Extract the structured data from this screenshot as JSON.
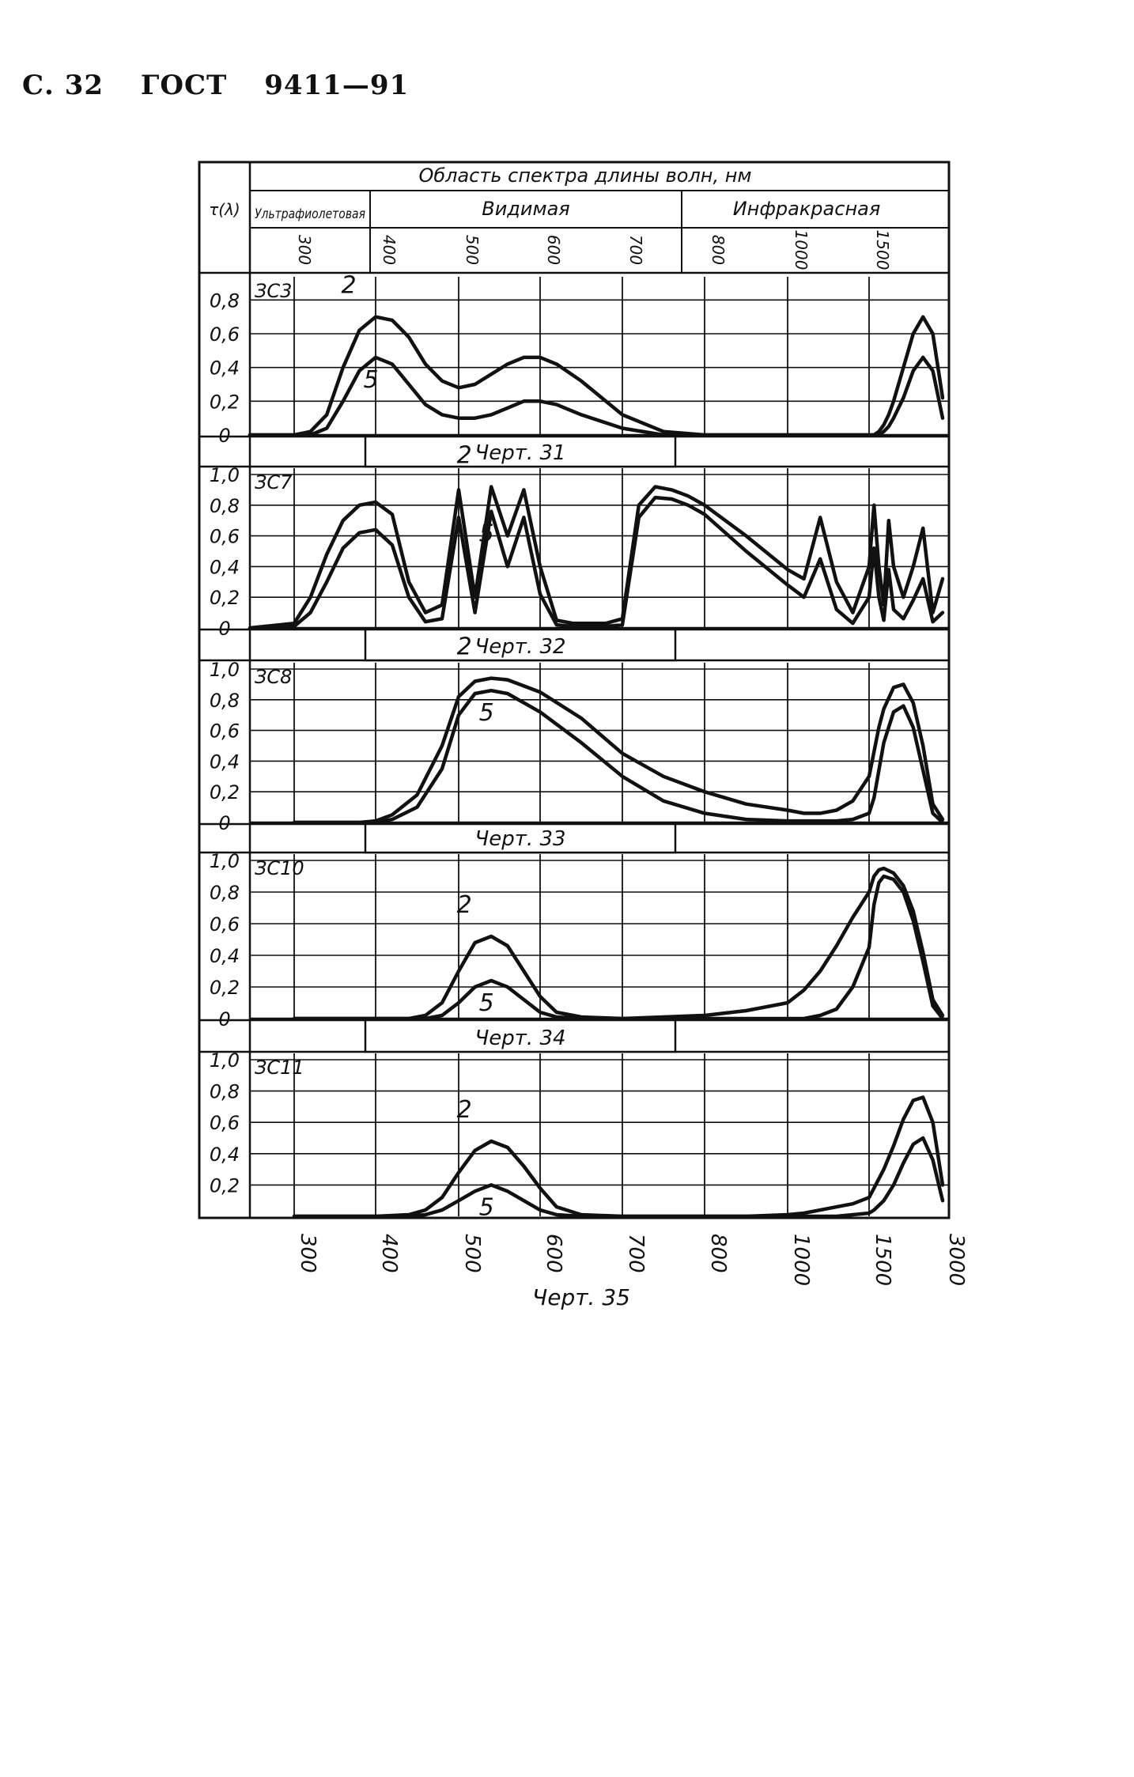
{
  "header": {
    "page": "С. 32",
    "standard": "ГОСТ",
    "number": "9411—91"
  },
  "table_header": {
    "y_symbol": "τ(λ)",
    "title": "Область спектра длины волн, нм",
    "regions": [
      "Ультрафиолетовая",
      "Видимая",
      "Инфракрасная"
    ],
    "ticks": [
      "300",
      "400",
      "500",
      "600",
      "700",
      "800",
      "1000",
      "1500"
    ]
  },
  "x_ticks": [
    "300",
    "400",
    "500",
    "600",
    "700",
    "800",
    "1000",
    "1500",
    "3000"
  ],
  "bottom_caption": "Черт. 35",
  "chart_data": [
    {
      "type": "line",
      "label": "ЗС3",
      "caption": "Черт. 31",
      "y_ticks": [
        "0,8",
        "0,6",
        "0,4",
        "0,2",
        "0"
      ],
      "ylim": [
        0,
        0.9
      ],
      "x": [
        "280",
        "300",
        "320",
        "340",
        "360",
        "380",
        "400",
        "420",
        "440",
        "460",
        "480",
        "500",
        "520",
        "540",
        "560",
        "580",
        "600",
        "620",
        "650",
        "700",
        "750",
        "800",
        "900",
        "1000",
        "1100",
        "1200",
        "1300",
        "1400",
        "1500",
        "1600",
        "1700",
        "1800",
        "1900",
        "2000",
        "2200",
        "2400",
        "2600",
        "2800",
        "3000"
      ],
      "series": [
        {
          "name": "2",
          "values": [
            0,
            0,
            0.02,
            0.12,
            0.4,
            0.62,
            0.7,
            0.68,
            0.58,
            0.42,
            0.32,
            0.28,
            0.3,
            0.36,
            0.42,
            0.46,
            0.46,
            0.42,
            0.32,
            0.12,
            0.02,
            0,
            0,
            0,
            0,
            0,
            0,
            0,
            0,
            0,
            0.02,
            0.06,
            0.12,
            0.2,
            0.4,
            0.6,
            0.7,
            0.6,
            0.22
          ]
        },
        {
          "name": "5",
          "values": [
            0,
            0,
            0,
            0.04,
            0.2,
            0.38,
            0.46,
            0.42,
            0.3,
            0.18,
            0.12,
            0.1,
            0.1,
            0.12,
            0.16,
            0.2,
            0.2,
            0.18,
            0.12,
            0.04,
            0,
            0,
            0,
            0,
            0,
            0,
            0,
            0,
            0,
            0,
            0,
            0.02,
            0.05,
            0.1,
            0.22,
            0.38,
            0.46,
            0.38,
            0.1
          ]
        }
      ]
    },
    {
      "type": "line",
      "label": "ЗС7",
      "caption": "Черт. 32",
      "y_ticks": [
        "1,0",
        "0,8",
        "0,6",
        "0,4",
        "0,2",
        "0"
      ],
      "ylim": [
        0,
        1.0
      ],
      "x": [
        "280",
        "300",
        "320",
        "340",
        "360",
        "380",
        "400",
        "420",
        "440",
        "460",
        "480",
        "500",
        "520",
        "540",
        "560",
        "580",
        "600",
        "620",
        "640",
        "660",
        "680",
        "700",
        "720",
        "740",
        "760",
        "780",
        "800",
        "900",
        "1000",
        "1100",
        "1200",
        "1300",
        "1400",
        "1500",
        "1600",
        "1700",
        "1800",
        "1900",
        "2000",
        "2200",
        "2400",
        "2600",
        "2800",
        "3000"
      ],
      "series": [
        {
          "name": "2",
          "values": [
            0,
            0.03,
            0.2,
            0.48,
            0.7,
            0.8,
            0.82,
            0.74,
            0.3,
            0.1,
            0.15,
            0.9,
            0.2,
            0.92,
            0.6,
            0.9,
            0.4,
            0.05,
            0.03,
            0.03,
            0.03,
            0.06,
            0.8,
            0.92,
            0.9,
            0.86,
            0.8,
            0.6,
            0.38,
            0.32,
            0.72,
            0.3,
            0.1,
            0.4,
            0.8,
            0.4,
            0.15,
            0.7,
            0.4,
            0.2,
            0.4,
            0.65,
            0.1,
            0.32
          ]
        },
        {
          "name": "5",
          "values": [
            0,
            0.01,
            0.1,
            0.3,
            0.52,
            0.62,
            0.64,
            0.54,
            0.2,
            0.04,
            0.06,
            0.72,
            0.1,
            0.76,
            0.4,
            0.72,
            0.22,
            0.02,
            0.01,
            0.01,
            0.01,
            0.02,
            0.72,
            0.85,
            0.84,
            0.8,
            0.74,
            0.5,
            0.28,
            0.2,
            0.45,
            0.12,
            0.03,
            0.2,
            0.52,
            0.2,
            0.05,
            0.38,
            0.12,
            0.06,
            0.18,
            0.32,
            0.04,
            0.1
          ]
        }
      ]
    },
    {
      "type": "line",
      "label": "ЗС8",
      "caption": "Черт. 33",
      "y_ticks": [
        "1,0",
        "0,8",
        "0,6",
        "0,4",
        "0,2",
        "0"
      ],
      "ylim": [
        0,
        1.0
      ],
      "x": [
        "300",
        "350",
        "380",
        "400",
        "420",
        "450",
        "480",
        "500",
        "520",
        "540",
        "560",
        "600",
        "650",
        "700",
        "750",
        "800",
        "900",
        "1000",
        "1100",
        "1200",
        "1300",
        "1400",
        "1500",
        "1600",
        "1700",
        "1800",
        "2000",
        "2200",
        "2400",
        "2600",
        "2800",
        "3000"
      ],
      "series": [
        {
          "name": "2",
          "values": [
            0,
            0,
            0,
            0.01,
            0.05,
            0.18,
            0.5,
            0.82,
            0.92,
            0.94,
            0.93,
            0.85,
            0.68,
            0.45,
            0.3,
            0.2,
            0.12,
            0.08,
            0.06,
            0.06,
            0.08,
            0.14,
            0.3,
            0.46,
            0.62,
            0.74,
            0.88,
            0.9,
            0.78,
            0.5,
            0.12,
            0.02
          ]
        },
        {
          "name": "5",
          "values": [
            0,
            0,
            0,
            0,
            0.02,
            0.1,
            0.35,
            0.7,
            0.84,
            0.86,
            0.84,
            0.72,
            0.52,
            0.3,
            0.14,
            0.06,
            0.02,
            0.01,
            0.01,
            0.01,
            0.01,
            0.02,
            0.06,
            0.16,
            0.34,
            0.52,
            0.72,
            0.76,
            0.62,
            0.34,
            0.06,
            0
          ]
        }
      ]
    },
    {
      "type": "line",
      "label": "ЗС10",
      "caption": "Черт. 34",
      "y_ticks": [
        "1,0",
        "0,8",
        "0,6",
        "0,4",
        "0,2",
        "0"
      ],
      "ylim": [
        0,
        1.0
      ],
      "x": [
        "300",
        "400",
        "440",
        "460",
        "480",
        "500",
        "520",
        "540",
        "560",
        "580",
        "600",
        "620",
        "650",
        "700",
        "800",
        "900",
        "1000",
        "1100",
        "1200",
        "1300",
        "1400",
        "1500",
        "1600",
        "1700",
        "1800",
        "2000",
        "2200",
        "2400",
        "2600",
        "2800",
        "3000"
      ],
      "series": [
        {
          "name": "2",
          "values": [
            0,
            0,
            0,
            0.02,
            0.1,
            0.3,
            0.48,
            0.52,
            0.46,
            0.3,
            0.14,
            0.04,
            0.01,
            0,
            0.02,
            0.05,
            0.1,
            0.18,
            0.3,
            0.46,
            0.64,
            0.8,
            0.9,
            0.94,
            0.95,
            0.92,
            0.84,
            0.68,
            0.42,
            0.12,
            0.02
          ]
        },
        {
          "name": "5",
          "values": [
            0,
            0,
            0,
            0,
            0.02,
            0.1,
            0.2,
            0.24,
            0.2,
            0.12,
            0.04,
            0.01,
            0,
            0,
            0,
            0,
            0,
            0,
            0.02,
            0.06,
            0.2,
            0.45,
            0.72,
            0.86,
            0.9,
            0.88,
            0.8,
            0.62,
            0.36,
            0.08,
            0
          ]
        }
      ]
    },
    {
      "type": "line",
      "label": "ЗС11",
      "caption": "",
      "y_ticks": [
        "1,0",
        "0,8",
        "0,6",
        "0,4",
        "0,2"
      ],
      "ylim": [
        0,
        1.0
      ],
      "x": [
        "300",
        "400",
        "440",
        "460",
        "480",
        "500",
        "520",
        "540",
        "560",
        "580",
        "600",
        "620",
        "650",
        "700",
        "800",
        "900",
        "1000",
        "1100",
        "1200",
        "1300",
        "1400",
        "1500",
        "1600",
        "1800",
        "2000",
        "2200",
        "2400",
        "2600",
        "2800",
        "3000"
      ],
      "series": [
        {
          "name": "2",
          "values": [
            0,
            0,
            0.01,
            0.04,
            0.12,
            0.28,
            0.42,
            0.48,
            0.44,
            0.32,
            0.18,
            0.06,
            0.01,
            0,
            0,
            0,
            0.01,
            0.02,
            0.04,
            0.06,
            0.08,
            0.12,
            0.18,
            0.3,
            0.45,
            0.62,
            0.74,
            0.76,
            0.6,
            0.2
          ]
        },
        {
          "name": "5",
          "values": [
            0,
            0,
            0,
            0.01,
            0.04,
            0.1,
            0.16,
            0.2,
            0.16,
            0.1,
            0.04,
            0.01,
            0,
            0,
            0,
            0,
            0,
            0,
            0,
            0,
            0.01,
            0.02,
            0.04,
            0.1,
            0.2,
            0.34,
            0.46,
            0.5,
            0.36,
            0.1
          ]
        }
      ]
    }
  ]
}
